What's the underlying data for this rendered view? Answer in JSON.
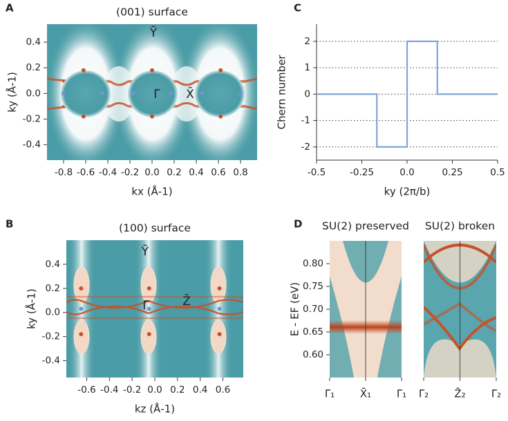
{
  "chart_data": [
    {
      "type": "scatter",
      "panel_label": "A",
      "title": "(001) surface",
      "x_label": "kx (Å-1)",
      "y_label": "ky (Å-1)",
      "xlim": [
        -0.95,
        0.95
      ],
      "ylim": [
        -0.52,
        0.54
      ],
      "xticks": [
        -0.8,
        -0.6,
        -0.4,
        -0.2,
        {
          "value": 0,
          "label": "0.0"
        },
        0.2,
        0.4,
        0.6,
        0.8
      ],
      "yticks": [
        -0.4,
        -0.2,
        {
          "value": 0,
          "label": "0.0"
        },
        0.2,
        0.4
      ],
      "series": [
        {
          "color": "#c4532b",
          "x": [
            -0.62,
            0,
            0.62,
            -0.62,
            0,
            0.62
          ],
          "y": [
            0.18,
            0.18,
            0.18,
            -0.18,
            -0.18,
            -0.18
          ]
        },
        {
          "color": "#6a98cf",
          "x": [
            -0.8,
            -0.45,
            -0.17,
            0.17,
            0.45,
            0.8
          ],
          "y": [
            0,
            0,
            0,
            0,
            0,
            0
          ]
        }
      ],
      "annotations": [
        "Ȳ",
        "Γ̄",
        "X̄"
      ]
    },
    {
      "type": "scatter",
      "panel_label": "B",
      "title": "(100) surface",
      "x_label": "kz (Å-1)",
      "y_label": "ky (Å-1)",
      "xlim": [
        -0.78,
        0.78
      ],
      "ylim": [
        -0.54,
        0.6
      ],
      "xticks": [
        -0.6,
        -0.4,
        -0.2,
        {
          "value": 0,
          "label": "0.0"
        },
        0.2,
        0.4,
        0.6
      ],
      "yticks": [
        -0.4,
        -0.2,
        {
          "value": 0,
          "label": "0.0"
        },
        0.2,
        0.4
      ],
      "series": [
        {
          "color": "#c4532b",
          "x": [
            -0.65,
            -0.05,
            0.57,
            -0.65,
            -0.05,
            0.57
          ],
          "y": [
            0.2,
            0.2,
            0.2,
            -0.18,
            -0.18,
            -0.18
          ]
        },
        {
          "color": "#6a98cf",
          "x": [
            -0.65,
            -0.05,
            0.57
          ],
          "y": [
            0.03,
            0.03,
            0.03
          ]
        }
      ],
      "annotations": [
        "Ȳ",
        "Γ̄",
        "Z̄"
      ]
    },
    {
      "type": "line",
      "panel_label": "C",
      "x_label": "ky (2π/b)",
      "y_label": "Chern number",
      "xlim": [
        -0.5,
        0.5
      ],
      "ylim": [
        -2.5,
        2.65
      ],
      "xticks": [
        -0.5,
        -0.25,
        {
          "value": 0,
          "label": "0.0"
        },
        0.25,
        0.5
      ],
      "yticks": [
        -2,
        -1,
        0,
        1,
        2
      ],
      "grid": true,
      "x": [
        -0.5,
        -0.167,
        -0.167,
        0,
        0,
        0.167,
        0.167,
        0.5
      ],
      "series": [
        {
          "color": "#7ea6da",
          "values": [
            0,
            0,
            -2,
            -2,
            2,
            2,
            0,
            0
          ]
        }
      ]
    },
    {
      "type": "heatmap",
      "panel_label": "D",
      "y_label": "E - EF (eV)",
      "ylim": [
        0.55,
        0.85
      ],
      "yticks": [
        {
          "value": 0.6,
          "label": "0.60"
        },
        0.65,
        {
          "value": 0.7,
          "label": "0.70"
        },
        0.75,
        {
          "value": 0.8,
          "label": "0.80"
        }
      ],
      "panels": [
        {
          "title": "SU(2) preserved",
          "categories": [
            "Γ̄₁",
            "X̄₁",
            "Γ̄₁"
          ]
        },
        {
          "title": "SU(2) broken",
          "categories": [
            "Γ̄₂",
            "Z̄₂",
            "Γ̄₂"
          ]
        }
      ]
    }
  ]
}
